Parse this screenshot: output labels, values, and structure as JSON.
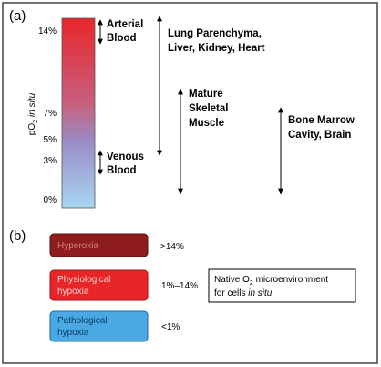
{
  "panel_a": {
    "label": "(a)",
    "y_axis_label": {
      "prefix": "pO",
      "subscript": "2",
      "suffix": "in situ"
    },
    "ticks": [
      "14%",
      "7%",
      "5%",
      "3%",
      "0%"
    ],
    "annotations": [
      {
        "lines": [
          "Arterial",
          "Blood"
        ]
      },
      {
        "lines": [
          "Venous",
          "Blood"
        ]
      },
      {
        "lines": [
          "Lung Parenchyma,",
          "Liver, Kidney, Heart"
        ]
      },
      {
        "lines": [
          "Mature",
          "Skeletal",
          "Muscle"
        ]
      },
      {
        "lines": [
          "Bone Marrow",
          "Cavity, Brain"
        ]
      }
    ]
  },
  "panel_b": {
    "label": "(b)",
    "rows": [
      {
        "box": [
          "Hyperoxia"
        ],
        "range": ">14%"
      },
      {
        "box": [
          "Physiological",
          "hypoxia"
        ],
        "range": "1%–14%"
      },
      {
        "box": [
          "Pathological",
          "hypoxia"
        ],
        "range": "<1%"
      }
    ],
    "note": {
      "line1_prefix": "Native O",
      "line1_subscript": "2",
      "line1_suffix": " microenvironment",
      "line2_prefix": "for cells ",
      "line2_italic": "in situ"
    }
  }
}
